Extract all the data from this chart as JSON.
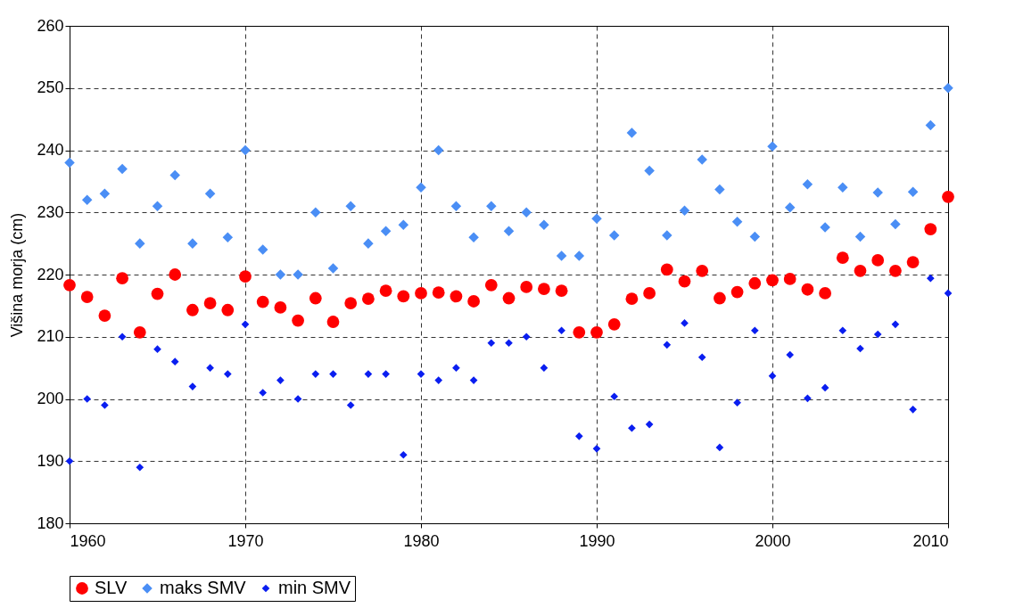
{
  "chart_data": {
    "type": "scatter",
    "ylabel": "Višina morja (cm)",
    "x": [
      1960,
      1961,
      1962,
      1963,
      1964,
      1965,
      1966,
      1967,
      1968,
      1969,
      1970,
      1971,
      1972,
      1973,
      1974,
      1975,
      1976,
      1977,
      1978,
      1979,
      1980,
      1981,
      1982,
      1983,
      1984,
      1985,
      1986,
      1987,
      1988,
      1989,
      1990,
      1991,
      1992,
      1993,
      1994,
      1995,
      1996,
      1997,
      1998,
      1999,
      2000,
      2001,
      2002,
      2003,
      2004,
      2005,
      2006,
      2007,
      2008,
      2009,
      2010
    ],
    "series": [
      {
        "name": "SLV",
        "color": "#ff0000",
        "marker": "circle",
        "values": [
          218.3,
          216.4,
          213.4,
          219.4,
          210.7,
          216.9,
          220,
          214.3,
          215.4,
          214.3,
          219.7,
          215.6,
          214.7,
          212.6,
          216.2,
          212.4,
          215.4,
          216.1,
          217.4,
          216.5,
          217,
          217.1,
          216.5,
          215.7,
          218.3,
          216.2,
          218,
          217.7,
          217.4,
          210.7,
          210.7,
          212,
          216.1,
          217,
          220.8,
          218.9,
          220.6,
          216.2,
          217.2,
          218.6,
          219.1,
          219.3,
          217.6,
          217,
          222.7,
          220.6,
          222.3,
          220.6,
          222,
          227.3,
          232.5
        ]
      },
      {
        "name": "maks SMV",
        "color": "#4a8ef5",
        "marker": "diamond",
        "values": [
          238,
          232,
          233,
          237,
          225,
          231,
          236,
          225,
          233,
          226,
          240,
          224,
          220,
          220,
          230,
          221,
          231,
          225,
          227,
          228,
          234,
          240,
          231,
          226,
          231,
          227,
          230,
          228,
          223,
          223,
          229,
          226.3,
          242.8,
          236.7,
          226.3,
          230.3,
          238.5,
          233.7,
          228.5,
          226.1,
          240.6,
          230.8,
          234.5,
          227.6,
          234,
          226.1,
          233.2,
          228.1,
          233.3,
          244,
          250
        ]
      },
      {
        "name": "min SMV",
        "color": "#0a1ef0",
        "marker": "diamond",
        "values": [
          190,
          200,
          199,
          210,
          189,
          208,
          206,
          202,
          205,
          204,
          212,
          201,
          203,
          200,
          204,
          204,
          199,
          204,
          204,
          191,
          204,
          203,
          205,
          203,
          209,
          209,
          210,
          205,
          211,
          194,
          192,
          200.4,
          195.3,
          195.9,
          208.7,
          212.2,
          206.7,
          192.2,
          199.4,
          211,
          203.7,
          207.1,
          200.1,
          201.8,
          211,
          208.1,
          210.4,
          212,
          198.3,
          219.4,
          217
        ]
      }
    ],
    "xlim": [
      1960,
      2010
    ],
    "xticks": [
      1960,
      1970,
      1980,
      1990,
      2000,
      2010
    ],
    "ylim": [
      180,
      260
    ],
    "yticks": [
      180,
      190,
      200,
      210,
      220,
      230,
      240,
      250,
      260
    ],
    "grid": true,
    "legend": "bottom",
    "line_style": "dashed"
  }
}
